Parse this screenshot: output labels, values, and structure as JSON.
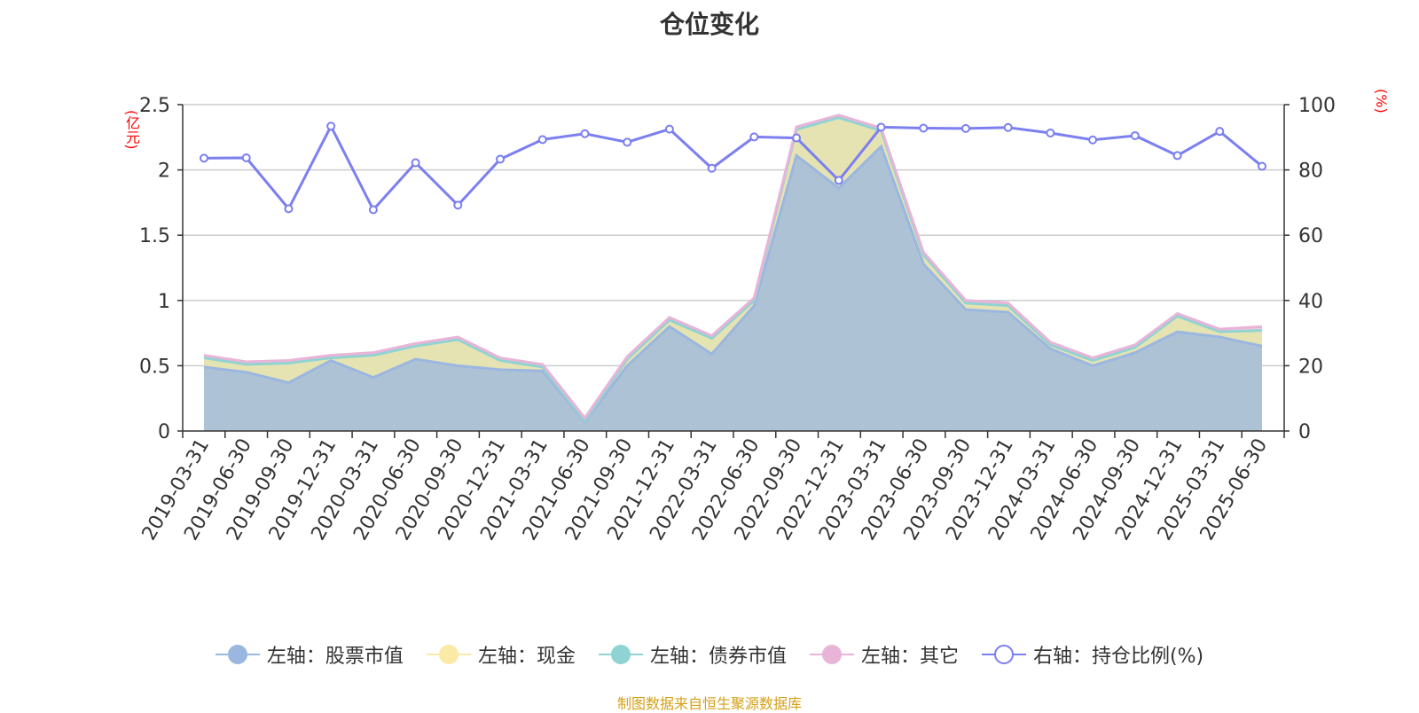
{
  "title": "仓位变化",
  "left_axis_unit": "(亿元)",
  "right_axis_unit": "(%)",
  "source_note": "制图数据来自恒生聚源数据库",
  "legend": [
    {
      "label": "左轴：股票市值",
      "color": "#9bb7e0",
      "icon": "filled-circle"
    },
    {
      "label": "左轴：现金",
      "color": "#fbe9a6",
      "icon": "filled-circle"
    },
    {
      "label": "左轴：债券市值",
      "color": "#8fd3d3",
      "icon": "filled-circle"
    },
    {
      "label": "左轴：其它",
      "color": "#e8b4d8",
      "icon": "filled-circle"
    },
    {
      "label": "右轴：持仓比例(%)",
      "color": "#7b7ff0",
      "icon": "hollow-circle"
    }
  ],
  "chart_data": {
    "type": "area",
    "title": "仓位变化",
    "categories": [
      "2019-03-31",
      "2019-06-30",
      "2019-09-30",
      "2019-12-31",
      "2020-03-31",
      "2020-06-30",
      "2020-09-30",
      "2020-12-31",
      "2021-03-31",
      "2021-06-30",
      "2021-09-30",
      "2021-12-31",
      "2022-03-31",
      "2022-06-30",
      "2022-09-30",
      "2022-12-31",
      "2023-03-31",
      "2023-06-30",
      "2023-09-30",
      "2023-12-31",
      "2024-03-31",
      "2024-06-30",
      "2024-09-30",
      "2024-12-31",
      "2025-03-31",
      "2025-06-30"
    ],
    "left_axis": {
      "label": "(亿元)",
      "ylim": [
        0,
        2.5
      ],
      "ticks": [
        "0",
        "0.5",
        "1",
        "1.5",
        "2",
        "2.5"
      ]
    },
    "right_axis": {
      "label": "(%)",
      "ylim": [
        0,
        100
      ],
      "ticks": [
        "0",
        "20",
        "40",
        "60",
        "80",
        "100"
      ]
    },
    "grid": true,
    "legend_position": "bottom",
    "series": [
      {
        "name": "左轴：股票市值",
        "axis": "left",
        "color": "#9bb7e0",
        "values": [
          0.49,
          0.45,
          0.37,
          0.54,
          0.41,
          0.55,
          0.5,
          0.47,
          0.46,
          0.07,
          0.5,
          0.8,
          0.59,
          0.96,
          2.11,
          1.86,
          2.18,
          1.28,
          0.93,
          0.91,
          0.63,
          0.5,
          0.6,
          0.76,
          0.72,
          0.65
        ]
      },
      {
        "name": "左轴：现金",
        "axis": "left",
        "color": "#fbe9a6",
        "values": [
          0.07,
          0.06,
          0.15,
          0.02,
          0.17,
          0.1,
          0.2,
          0.07,
          0.03,
          0.01,
          0.05,
          0.05,
          0.12,
          0.04,
          0.2,
          0.54,
          0.12,
          0.07,
          0.05,
          0.05,
          0.03,
          0.04,
          0.04,
          0.12,
          0.04,
          0.12
        ]
      },
      {
        "name": "左轴：债券市值",
        "axis": "left",
        "color": "#8fd3d3",
        "values": [
          0,
          0,
          0,
          0,
          0,
          0,
          0,
          0,
          0,
          0,
          0,
          0,
          0,
          0,
          0,
          0,
          0,
          0,
          0,
          0,
          0,
          0,
          0,
          0,
          0,
          0
        ]
      },
      {
        "name": "左轴：其它",
        "axis": "left",
        "color": "#e8b4d8",
        "values": [
          0.02,
          0.02,
          0.02,
          0.02,
          0.02,
          0.02,
          0.02,
          0.02,
          0.02,
          0.02,
          0.02,
          0.02,
          0.02,
          0.02,
          0.02,
          0.02,
          0.02,
          0.02,
          0.02,
          0.02,
          0.02,
          0.02,
          0.02,
          0.02,
          0.02,
          0.03
        ]
      },
      {
        "name": "右轴：持仓比例(%)",
        "axis": "right",
        "color": "#7b7ff0",
        "values": [
          83.6,
          83.7,
          68.1,
          93.4,
          67.8,
          82.2,
          69.2,
          83.3,
          89.3,
          91.1,
          88.5,
          92.5,
          80.5,
          90.1,
          89.8,
          76.8,
          93.1,
          92.8,
          92.7,
          93.0,
          91.3,
          89.2,
          90.5,
          84.4,
          91.8,
          81.1
        ]
      }
    ]
  }
}
